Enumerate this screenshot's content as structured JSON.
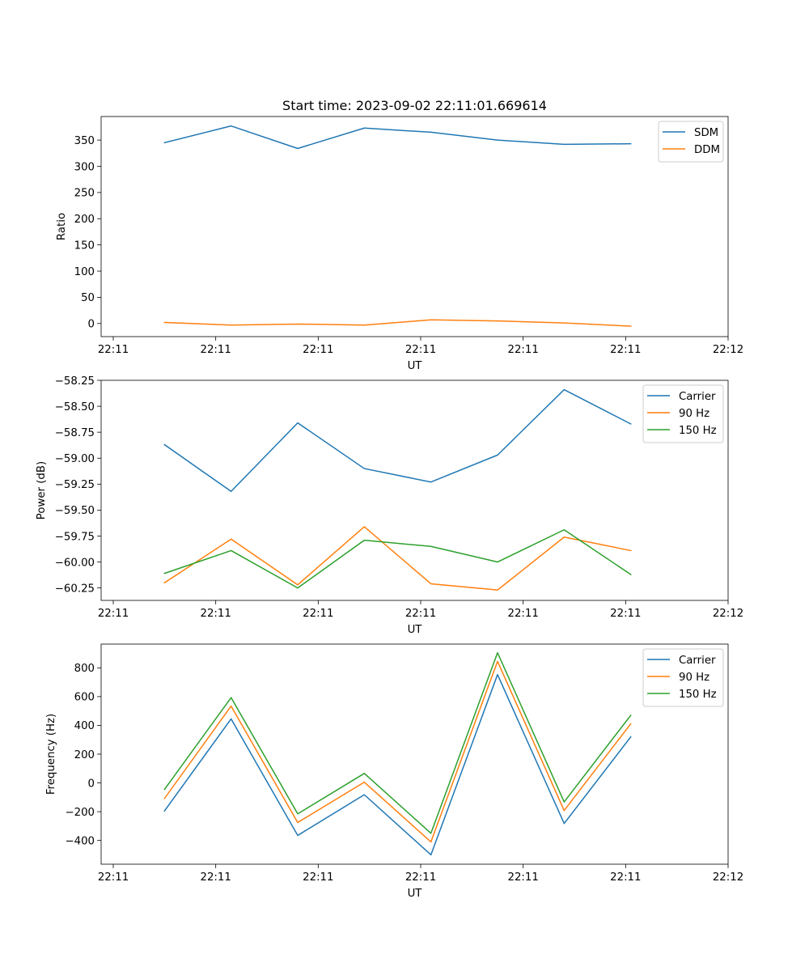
{
  "figure": {
    "title": "Start time: 2023-09-02 22:11:01.669614"
  },
  "chart_data": [
    {
      "type": "line",
      "title": "Start time: 2023-09-02 22:11:01.669614",
      "xlabel": "UT",
      "ylabel": "Ratio",
      "xticks": [
        "22:11",
        "22:11",
        "22:11",
        "22:11",
        "22:11",
        "22:11",
        "22:12"
      ],
      "xlim": [
        0,
        6
      ],
      "x": [
        0.5,
        1.15,
        1.8,
        2.45,
        3.1,
        3.75,
        4.4,
        5.05
      ],
      "ylim": [
        -25,
        395
      ],
      "yticks": [
        0,
        50,
        100,
        150,
        200,
        250,
        300,
        350
      ],
      "legend_position": "top-right",
      "series": [
        {
          "name": "SDM",
          "color": "#1f77b4",
          "values": [
            345,
            377,
            334,
            373,
            365,
            350,
            342,
            343
          ]
        },
        {
          "name": "DDM",
          "color": "#ff7f0e",
          "values": [
            2,
            -3,
            -1,
            -3,
            7,
            5,
            1,
            -5
          ]
        }
      ]
    },
    {
      "type": "line",
      "xlabel": "UT",
      "ylabel": "Power (dB)",
      "xticks": [
        "22:11",
        "22:11",
        "22:11",
        "22:11",
        "22:11",
        "22:11",
        "22:12"
      ],
      "xlim": [
        0,
        6
      ],
      "x": [
        0.5,
        1.15,
        1.8,
        2.45,
        3.1,
        3.75,
        4.4,
        5.05
      ],
      "ylim": [
        -60.37,
        -58.25
      ],
      "yticks": [
        -60.25,
        -60.0,
        -59.75,
        -59.5,
        -59.25,
        -59.0,
        -58.75,
        -58.5,
        -58.25
      ],
      "ytick_labels": [
        "−60.25",
        "−60.00",
        "−59.75",
        "−59.50",
        "−59.25",
        "−59.00",
        "−58.75",
        "−58.50",
        "−58.25"
      ],
      "legend_position": "top-right",
      "series": [
        {
          "name": "Carrier",
          "color": "#1f77b4",
          "values": [
            -58.87,
            -59.32,
            -58.66,
            -59.1,
            -59.23,
            -58.97,
            -58.34,
            -58.67
          ]
        },
        {
          "name": "90 Hz",
          "color": "#ff7f0e",
          "values": [
            -60.2,
            -59.78,
            -60.22,
            -59.66,
            -60.21,
            -60.27,
            -59.76,
            -59.89
          ]
        },
        {
          "name": "150 Hz",
          "color": "#2ca02c",
          "values": [
            -60.11,
            -59.89,
            -60.25,
            -59.79,
            -59.85,
            -60.0,
            -59.69,
            -60.12
          ]
        }
      ]
    },
    {
      "type": "line",
      "xlabel": "UT",
      "ylabel": "Frequency (Hz)",
      "xticks": [
        "22:11",
        "22:11",
        "22:11",
        "22:11",
        "22:11",
        "22:11",
        "22:12"
      ],
      "xlim": [
        0,
        6
      ],
      "x": [
        0.5,
        1.15,
        1.8,
        2.45,
        3.1,
        3.75,
        4.4,
        5.05
      ],
      "ylim": [
        -565,
        965
      ],
      "yticks": [
        -400,
        -200,
        0,
        200,
        400,
        600,
        800
      ],
      "ytick_labels": [
        "−400",
        "−200",
        "0",
        "200",
        "400",
        "600",
        "800"
      ],
      "legend_position": "top-right",
      "series": [
        {
          "name": "Carrier",
          "color": "#1f77b4",
          "values": [
            -195,
            445,
            -365,
            -82,
            -500,
            753,
            -282,
            320
          ]
        },
        {
          "name": "90 Hz",
          "color": "#ff7f0e",
          "values": [
            -108,
            534,
            -275,
            5,
            -410,
            845,
            -192,
            411
          ]
        },
        {
          "name": "150 Hz",
          "color": "#2ca02c",
          "values": [
            -45,
            593,
            -215,
            66,
            -350,
            905,
            -132,
            470
          ]
        }
      ]
    }
  ]
}
